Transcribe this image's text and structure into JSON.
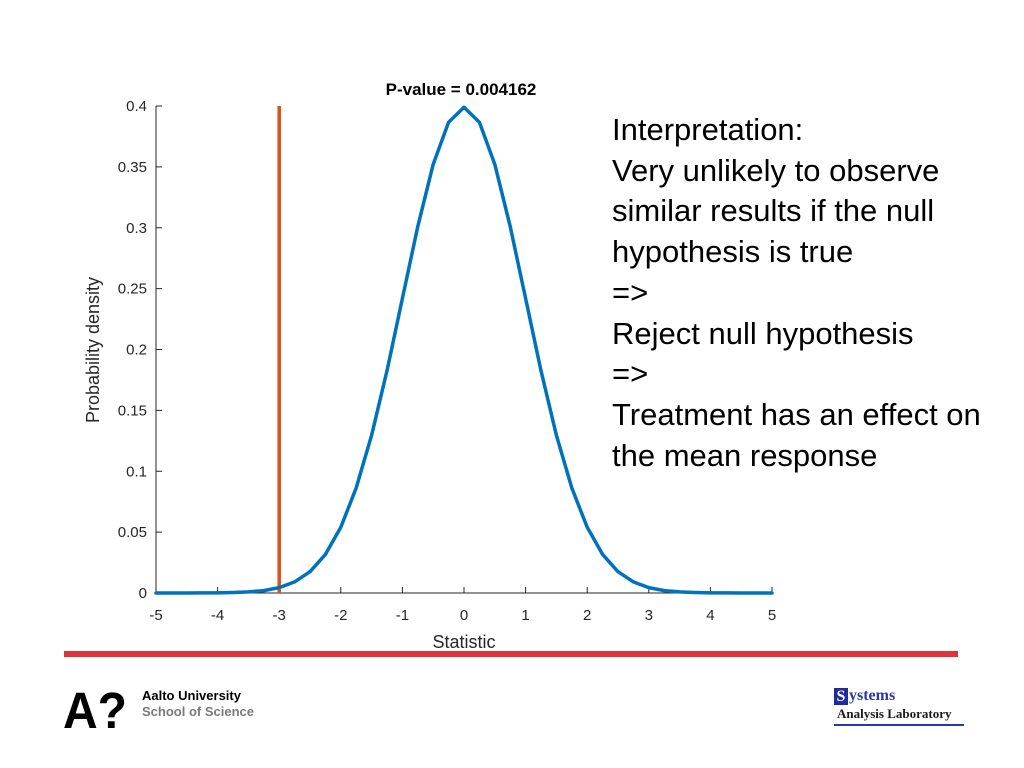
{
  "chart_data": {
    "type": "line",
    "title": "P-value = 0.004162",
    "xlabel": "Statistic",
    "ylabel": "Probability density",
    "xlim": [
      -5,
      5
    ],
    "ylim": [
      0,
      0.4
    ],
    "xticks": [
      "-5",
      "-4",
      "-3",
      "-2",
      "-1",
      "0",
      "1",
      "2",
      "3",
      "4",
      "5"
    ],
    "yticks": [
      "0",
      "0.05",
      "0.1",
      "0.15",
      "0.2",
      "0.25",
      "0.3",
      "0.35",
      "0.4"
    ],
    "grid": false,
    "series": [
      {
        "color": "#0072BD",
        "x": [
          -5,
          -4.75,
          -4.5,
          -4.25,
          -4,
          -3.75,
          -3.5,
          -3.25,
          -3,
          -2.75,
          -2.5,
          -2.25,
          -2,
          -1.75,
          -1.5,
          -1.25,
          -1,
          -0.75,
          -0.5,
          -0.25,
          0,
          0.25,
          0.5,
          0.75,
          1,
          1.25,
          1.5,
          1.75,
          2,
          2.25,
          2.5,
          2.75,
          3,
          3.25,
          3.5,
          3.75,
          4,
          4.25,
          4.5,
          4.75,
          5
        ],
        "y": [
          0.0,
          0.0,
          0.0,
          0.0001,
          0.0001,
          0.0004,
          0.0009,
          0.002,
          0.0044,
          0.0091,
          0.0175,
          0.0317,
          0.054,
          0.0863,
          0.1295,
          0.1826,
          0.242,
          0.3011,
          0.3521,
          0.3867,
          0.3989,
          0.3867,
          0.3521,
          0.3011,
          0.242,
          0.1826,
          0.1295,
          0.0863,
          0.054,
          0.0317,
          0.0175,
          0.0091,
          0.0044,
          0.002,
          0.0009,
          0.0004,
          0.0001,
          0.0001,
          0.0,
          0.0,
          0.0
        ]
      }
    ],
    "vline": {
      "x": -3,
      "y_range": [
        0,
        0.4
      ],
      "color": "#D95319"
    }
  },
  "interpretation": {
    "lines": [
      "Interpretation:",
      "Very unlikely to observe",
      "similar results if the null",
      "hypothesis is true",
      "=>",
      "Reject null hypothesis",
      "=>",
      "Treatment has an effect on",
      "the mean response"
    ]
  },
  "footer": {
    "rule_color": "#E0323C",
    "aalto": {
      "logo_text": "A?",
      "line1": "Aalto University",
      "line2": "School of Science"
    },
    "sal": {
      "initial": "S",
      "rest": "ystems",
      "line2": "Analysis Laboratory"
    }
  }
}
